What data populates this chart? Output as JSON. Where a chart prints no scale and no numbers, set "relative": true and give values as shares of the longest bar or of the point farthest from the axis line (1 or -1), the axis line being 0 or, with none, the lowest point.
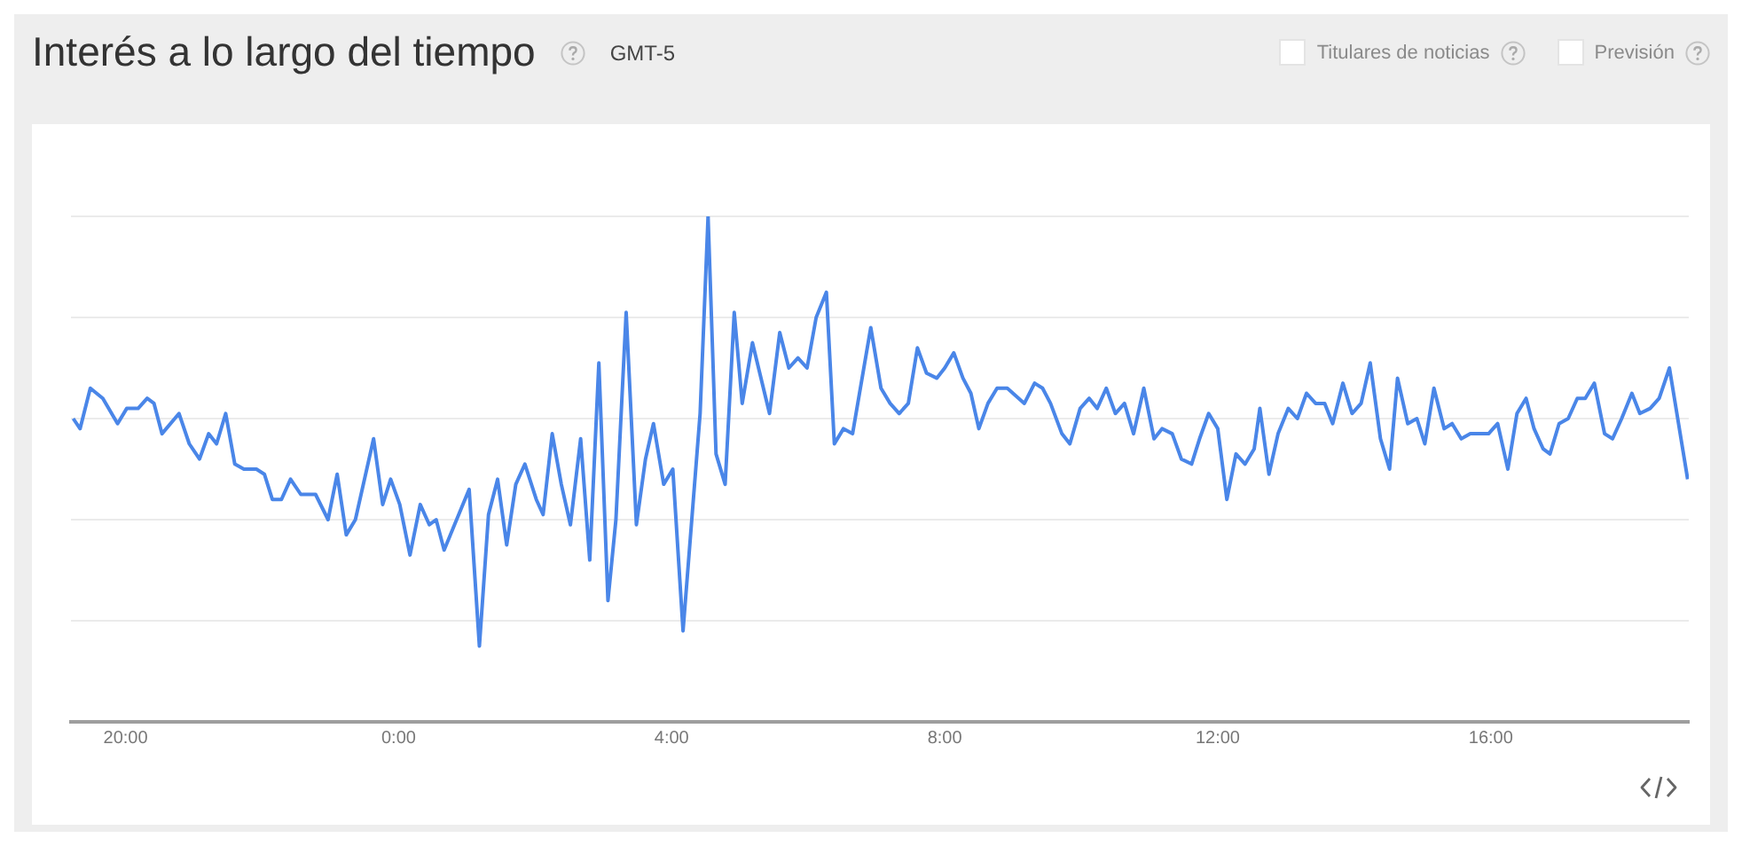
{
  "chart_data": {
    "type": "line",
    "title": "Interés a lo largo del tiempo",
    "subtitle": "GMT-5",
    "annotations": [
      "Titulares de noticias",
      "Previsión"
    ],
    "relative": true,
    "grid": "y",
    "legend": false,
    "line_style": "solid",
    "xlim": [
      "--01-01T19:12",
      "--01-02T18:54"
    ],
    "xticks": [
      {
        "value": "--01-01T20:00",
        "label": "20:00"
      },
      {
        "value": "--01-02T00:00",
        "label": "0:00"
      },
      {
        "value": "--01-02T04:00",
        "label": "4:00"
      },
      {
        "value": "--01-02T08:00",
        "label": "8:00"
      },
      {
        "value": "--01-02T12:00",
        "label": "12:00"
      },
      {
        "value": "--01-02T16:00",
        "label": "16:00"
      }
    ],
    "series": [
      {
        "color": "#4a86e8",
        "x": [
          "--01-01T19:14",
          "--01-01T19:20",
          "--01-01T19:29",
          "--01-01T19:40",
          "--01-01T19:53",
          "--01-01T20:01",
          "--01-01T20:11",
          "--01-01T20:19",
          "--01-01T20:25",
          "--01-01T20:32",
          "--01-01T20:47",
          "--01-01T20:56",
          "--01-01T21:05",
          "--01-01T21:13",
          "--01-01T21:20",
          "--01-01T21:28",
          "--01-01T21:36",
          "--01-01T21:44",
          "--01-01T21:55",
          "--01-01T22:02",
          "--01-01T22:09",
          "--01-01T22:17",
          "--01-01T22:25",
          "--01-01T22:34",
          "--01-01T22:47",
          "--01-01T22:58",
          "--01-01T23:06",
          "--01-01T23:14",
          "--01-01T23:22",
          "--01-01T23:38",
          "--01-01T23:46",
          "--01-01T23:53",
          "--01-02T00:01",
          "--01-02T00:10",
          "--01-02T00:19",
          "--01-02T00:27",
          "--01-02T00:33",
          "--01-02T00:40",
          "--01-02T01:02",
          "--01-02T01:11",
          "--01-02T01:19",
          "--01-02T01:27",
          "--01-02T01:35",
          "--01-02T01:43",
          "--01-02T01:51",
          "--01-02T02:01",
          "--01-02T02:07",
          "--01-02T02:15",
          "--01-02T02:23",
          "--01-02T02:31",
          "--01-02T02:40",
          "--01-02T02:48",
          "--01-02T02:56",
          "--01-02T03:04",
          "--01-02T03:11",
          "--01-02T03:20",
          "--01-02T03:29",
          "--01-02T03:37",
          "--01-02T03:44",
          "--01-02T03:53",
          "--01-02T04:01",
          "--01-02T04:10",
          "--01-02T04:25",
          "--01-02T04:32",
          "--01-02T04:39",
          "--01-02T04:47",
          "--01-02T04:55",
          "--01-02T05:02",
          "--01-02T05:11",
          "--01-02T05:26",
          "--01-02T05:35",
          "--01-02T05:43",
          "--01-02T05:51",
          "--01-02T05:59",
          "--01-02T06:07",
          "--01-02T06:16",
          "--01-02T06:23",
          "--01-02T06:31",
          "--01-02T06:39",
          "--01-02T06:55",
          "--01-02T07:04",
          "--01-02T07:12",
          "--01-02T07:20",
          "--01-02T07:28",
          "--01-02T07:36",
          "--01-02T07:44",
          "--01-02T07:53",
          "--01-02T08:00",
          "--01-02T08:08",
          "--01-02T08:16",
          "--01-02T08:23",
          "--01-02T08:30",
          "--01-02T08:38",
          "--01-02T08:46",
          "--01-02T08:55",
          "--01-02T09:10",
          "--01-02T09:19",
          "--01-02T09:26",
          "--01-02T09:33",
          "--01-02T09:43",
          "--01-02T09:50",
          "--01-02T09:59",
          "--01-02T10:07",
          "--01-02T10:14",
          "--01-02T10:22",
          "--01-02T10:30",
          "--01-02T10:38",
          "--01-02T10:46",
          "--01-02T10:55",
          "--01-02T11:04",
          "--01-02T11:11",
          "--01-02T11:20",
          "--01-02T11:28",
          "--01-02T11:37",
          "--01-02T11:44",
          "--01-02T11:52",
          "--01-02T12:00",
          "--01-02T12:08",
          "--01-02T12:16",
          "--01-02T12:24",
          "--01-02T12:32",
          "--01-02T12:37",
          "--01-02T12:45",
          "--01-02T12:53",
          "--01-02T13:02",
          "--01-02T13:10",
          "--01-02T13:18",
          "--01-02T13:26",
          "--01-02T13:34",
          "--01-02T13:41",
          "--01-02T13:50",
          "--01-02T13:58",
          "--01-02T14:06",
          "--01-02T14:14",
          "--01-02T14:23",
          "--01-02T14:31",
          "--01-02T14:38",
          "--01-02T14:47",
          "--01-02T14:55",
          "--01-02T15:02",
          "--01-02T15:10",
          "--01-02T15:19",
          "--01-02T15:26",
          "--01-02T15:34",
          "--01-02T15:42",
          "--01-02T15:58",
          "--01-02T16:06",
          "--01-02T16:15",
          "--01-02T16:23",
          "--01-02T16:31",
          "--01-02T16:38",
          "--01-02T16:46",
          "--01-02T16:52",
          "--01-02T17:00",
          "--01-02T17:08",
          "--01-02T17:16",
          "--01-02T17:23",
          "--01-02T17:31",
          "--01-02T17:40",
          "--01-02T17:47",
          "--01-02T17:55",
          "--01-02T18:04",
          "--01-02T18:11",
          "--01-02T18:20",
          "--01-02T18:28",
          "--01-02T18:37",
          "--01-02T18:53"
        ],
        "values": [
          0.6,
          0.58,
          0.66,
          0.64,
          0.59,
          0.62,
          0.62,
          0.64,
          0.63,
          0.57,
          0.61,
          0.55,
          0.52,
          0.57,
          0.55,
          0.61,
          0.51,
          0.5,
          0.5,
          0.49,
          0.44,
          0.44,
          0.48,
          0.45,
          0.45,
          0.4,
          0.49,
          0.37,
          0.4,
          0.56,
          0.43,
          0.48,
          0.43,
          0.33,
          0.43,
          0.39,
          0.4,
          0.34,
          0.46,
          0.15,
          0.41,
          0.48,
          0.35,
          0.47,
          0.51,
          0.44,
          0.41,
          0.57,
          0.47,
          0.39,
          0.56,
          0.32,
          0.71,
          0.24,
          0.4,
          0.81,
          0.39,
          0.52,
          0.59,
          0.47,
          0.5,
          0.18,
          0.61,
          1.0,
          0.53,
          0.47,
          0.81,
          0.63,
          0.75,
          0.61,
          0.77,
          0.7,
          0.72,
          0.7,
          0.8,
          0.85,
          0.55,
          0.58,
          0.57,
          0.78,
          0.66,
          0.63,
          0.61,
          0.63,
          0.74,
          0.69,
          0.68,
          0.7,
          0.73,
          0.68,
          0.65,
          0.58,
          0.63,
          0.66,
          0.66,
          0.63,
          0.67,
          0.66,
          0.63,
          0.57,
          0.55,
          0.62,
          0.64,
          0.62,
          0.66,
          0.61,
          0.63,
          0.57,
          0.66,
          0.56,
          0.58,
          0.57,
          0.52,
          0.51,
          0.56,
          0.61,
          0.58,
          0.44,
          0.53,
          0.51,
          0.54,
          0.62,
          0.49,
          0.57,
          0.62,
          0.6,
          0.65,
          0.63,
          0.63,
          0.59,
          0.67,
          0.61,
          0.63,
          0.71,
          0.56,
          0.5,
          0.68,
          0.59,
          0.6,
          0.55,
          0.66,
          0.58,
          0.59,
          0.56,
          0.57,
          0.57,
          0.59,
          0.5,
          0.61,
          0.64,
          0.58,
          0.54,
          0.53,
          0.59,
          0.6,
          0.64,
          0.64,
          0.67,
          0.57,
          0.56,
          0.6,
          0.65,
          0.61,
          0.62,
          0.64,
          0.7,
          0.48
        ]
      }
    ]
  }
}
